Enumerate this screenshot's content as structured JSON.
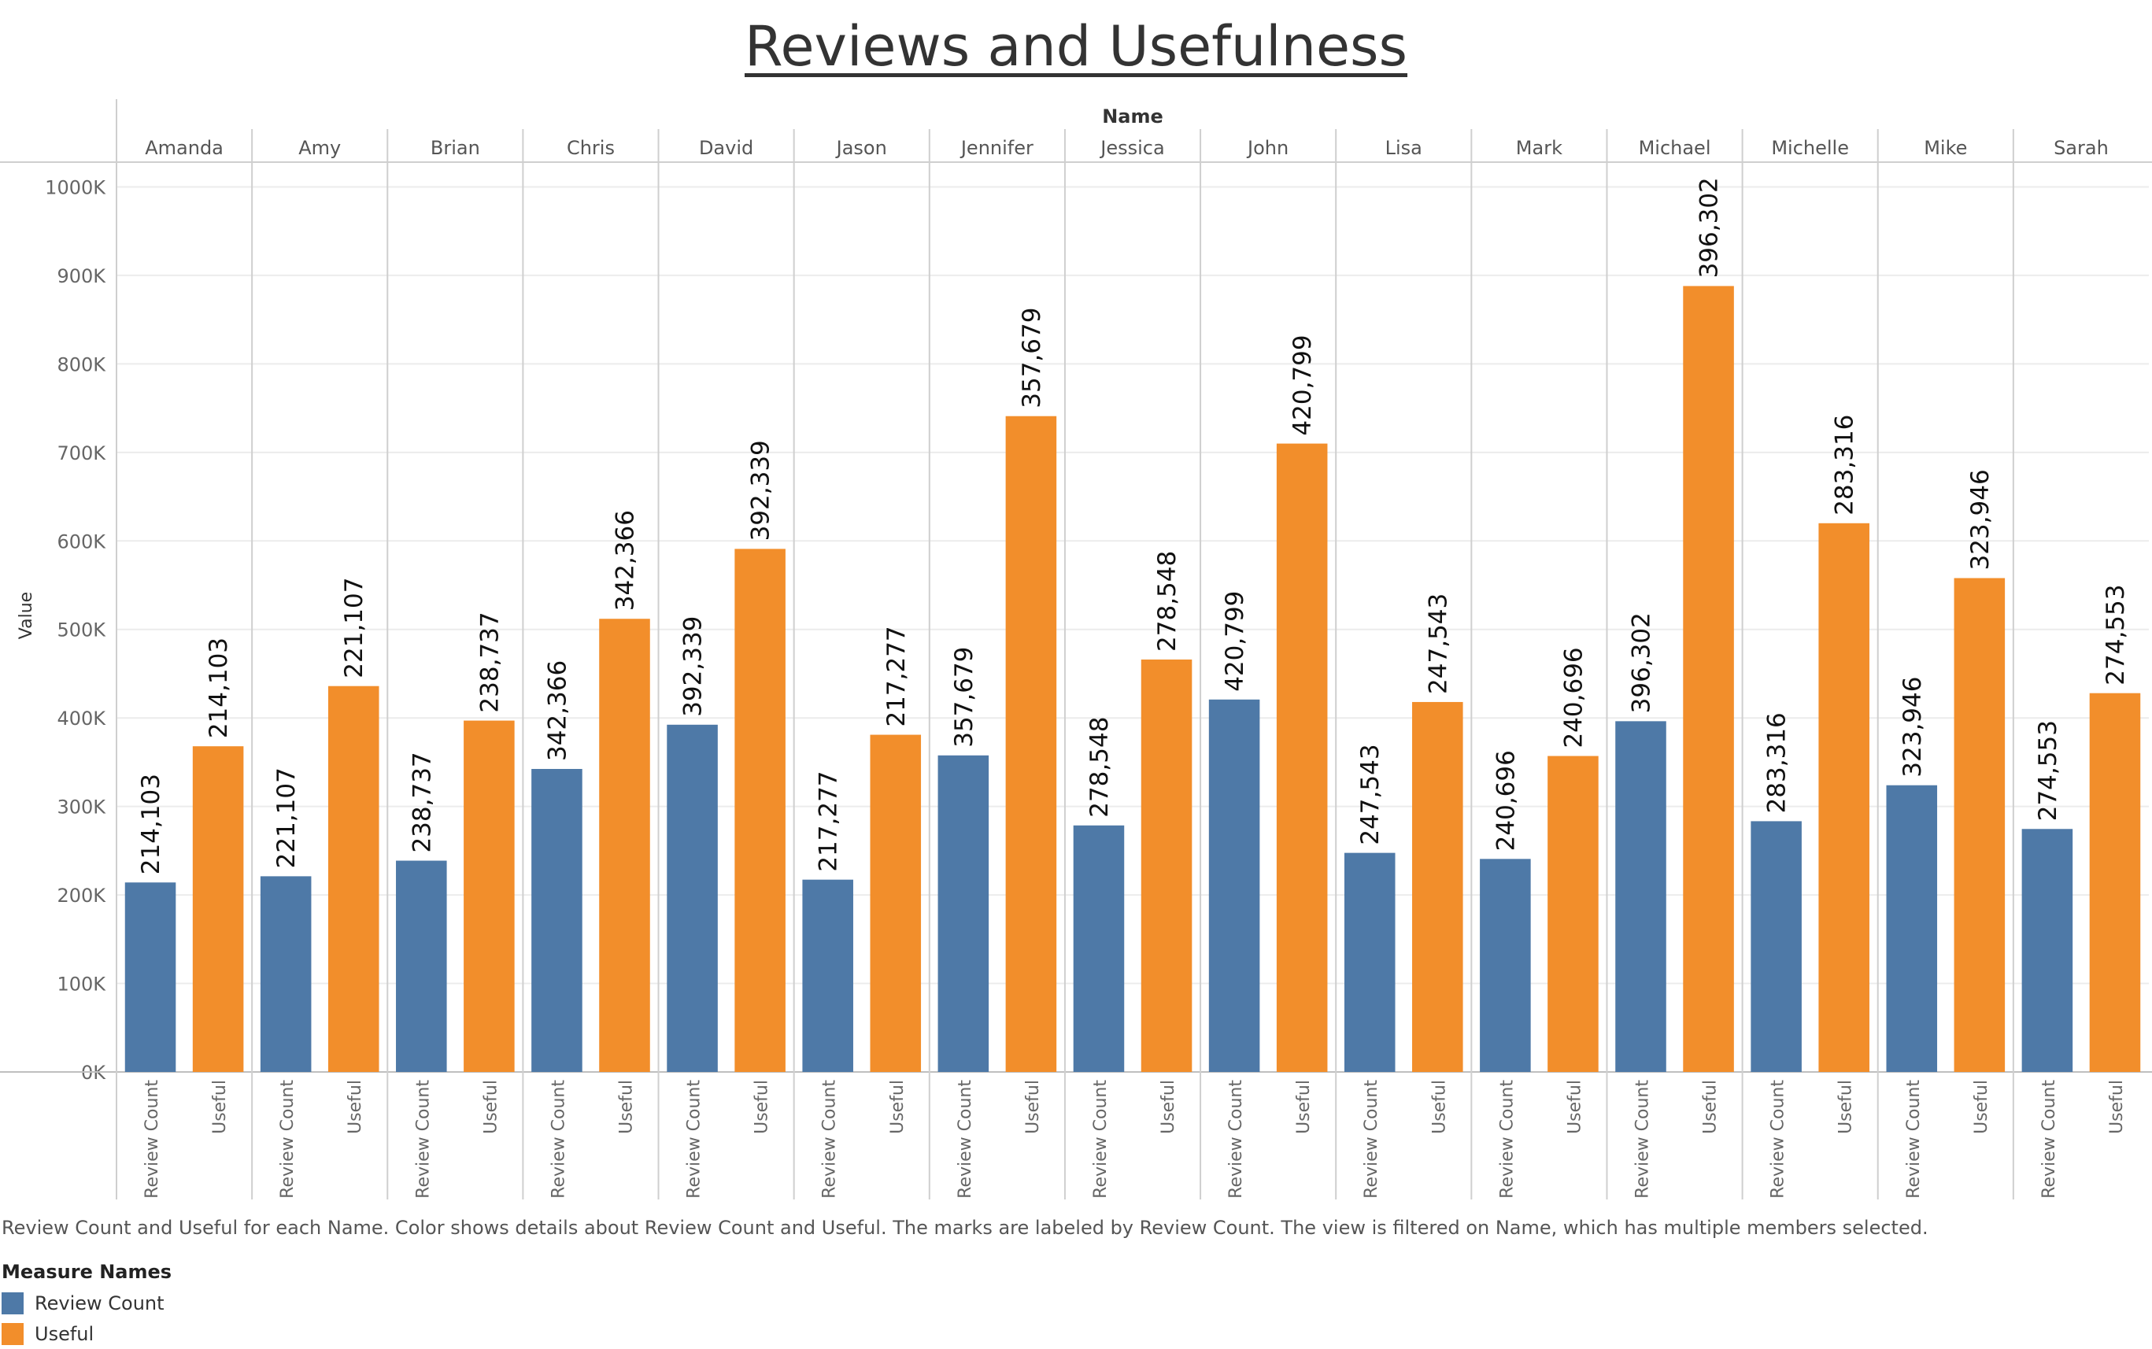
{
  "chart_data": {
    "type": "bar",
    "title": "Reviews and Usefulness",
    "column_header": "Name",
    "ylabel": "Value",
    "ylim": [
      0,
      1060000
    ],
    "y_ticks": [
      0,
      100000,
      200000,
      300000,
      400000,
      500000,
      600000,
      700000,
      800000,
      900000,
      1000000
    ],
    "y_tick_labels": [
      "0K",
      "100K",
      "200K",
      "300K",
      "400K",
      "500K",
      "600K",
      "700K",
      "800K",
      "900K",
      "1000K"
    ],
    "grid": "horizontal",
    "legend_position": "bottom-left",
    "categories": [
      "Amanda",
      "Amy",
      "Brian",
      "Chris",
      "David",
      "Jason",
      "Jennifer",
      "Jessica",
      "John",
      "Lisa",
      "Mark",
      "Michael",
      "Michelle",
      "Mike",
      "Sarah"
    ],
    "series": [
      {
        "name": "Review Count",
        "color": "#4e79a7",
        "values": [
          214103,
          221107,
          238737,
          342366,
          392339,
          217277,
          357679,
          278548,
          420799,
          247543,
          240696,
          396302,
          283316,
          323946,
          274553
        ],
        "labels": [
          "214,103",
          "221,107",
          "238,737",
          "342,366",
          "392,339",
          "217,277",
          "357,679",
          "278,548",
          "420,799",
          "247,543",
          "240,696",
          "396,302",
          "283,316",
          "323,946",
          "274,553"
        ]
      },
      {
        "name": "Useful",
        "color": "#f28e2b",
        "values": [
          368000,
          436000,
          397000,
          512000,
          591000,
          381000,
          741000,
          466000,
          710000,
          418000,
          357000,
          888000,
          620000,
          558000,
          428000
        ],
        "labels": [
          "214,103",
          "221,107",
          "238,737",
          "342,366",
          "392,339",
          "217,277",
          "357,679",
          "278,548",
          "420,799",
          "247,543",
          "240,696",
          "396,302",
          "283,316",
          "323,946",
          "274,553"
        ]
      }
    ]
  },
  "caption": "Review Count and Useful for each Name.  Color shows details about Review Count and Useful.  The marks are labeled by Review Count. The view is filtered on Name, which has multiple members selected.",
  "legend": {
    "title": "Measure Names",
    "items": [
      {
        "label": "Review Count",
        "color": "#4e79a7"
      },
      {
        "label": "Useful",
        "color": "#f28e2b"
      }
    ]
  }
}
